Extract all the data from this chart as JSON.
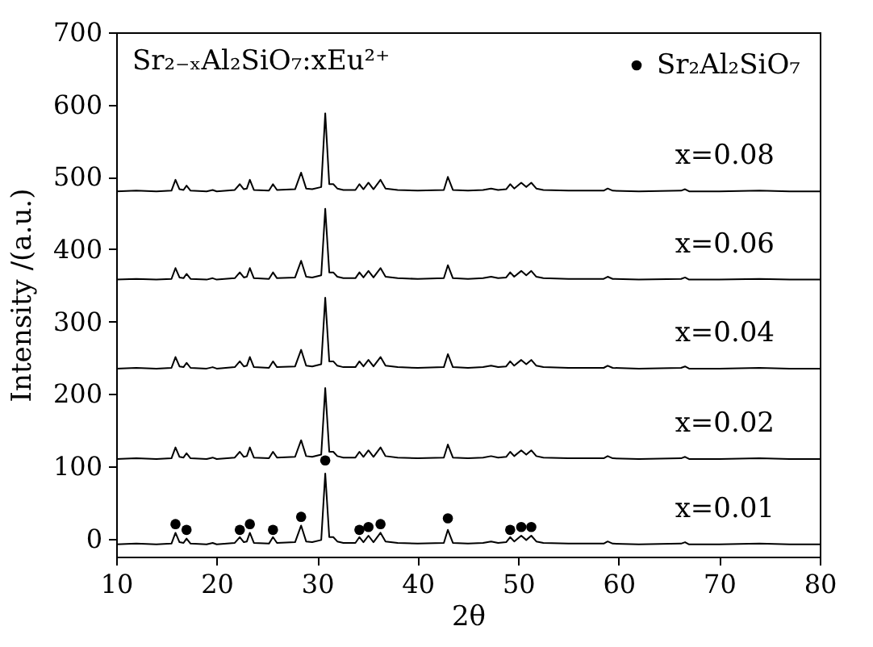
{
  "chart_data": {
    "type": "line",
    "xlabel": "2θ",
    "ylabel": "Intensity /(a.u.)",
    "annotations": [
      "Sr₂₋ₓAl₂SiO₇:xEu²⁺"
    ],
    "x": [
      10,
      12,
      14,
      15.5,
      15.9,
      16.3,
      16.7,
      17.0,
      17.4,
      19,
      19.6,
      20,
      21.8,
      22.3,
      22.7,
      23.0,
      23.3,
      23.7,
      25.2,
      25.6,
      26.0,
      27.8,
      28.4,
      28.9,
      29.5,
      30.4,
      30.8,
      31.2,
      31.6,
      32.0,
      32.6,
      33.8,
      34.2,
      34.6,
      35.1,
      35.6,
      36.3,
      36.8,
      38,
      40,
      42.6,
      43.0,
      43.5,
      45,
      46.5,
      47.3,
      48,
      48.8,
      49.2,
      49.6,
      50.3,
      50.8,
      51.3,
      51.8,
      52.5,
      55,
      58.5,
      58.9,
      59.4,
      62,
      66.2,
      66.6,
      67.0,
      70,
      74,
      77,
      80
    ],
    "series": [
      {
        "name": "x=0.01",
        "color": "#000000",
        "values": [
          -8,
          -7,
          -8,
          -7,
          8,
          -5,
          -6,
          0,
          -7,
          -8,
          -6,
          -8,
          -6,
          2,
          -5,
          -4,
          8,
          -6,
          -7,
          2,
          -6,
          -5,
          18,
          -4,
          -5,
          -2,
          90,
          2,
          2,
          -4,
          -6,
          -6,
          2,
          -5,
          4,
          -5,
          8,
          -4,
          -6,
          -7,
          -6,
          12,
          -6,
          -7,
          -6,
          -4,
          -6,
          -5,
          2,
          -4,
          4,
          -2,
          4,
          -4,
          -6,
          -7,
          -7,
          -4,
          -7,
          -8,
          -7,
          -5,
          -8,
          -8,
          -7,
          -8,
          -8
        ]
      },
      {
        "name": "x=0.02",
        "color": "#000000",
        "values": [
          110,
          111,
          110,
          111,
          126,
          113,
          112,
          118,
          111,
          110,
          112,
          110,
          112,
          120,
          113,
          114,
          126,
          112,
          111,
          120,
          112,
          113,
          136,
          114,
          113,
          116,
          208,
          120,
          120,
          114,
          112,
          112,
          120,
          113,
          122,
          113,
          126,
          114,
          112,
          111,
          112,
          130,
          112,
          111,
          112,
          114,
          112,
          113,
          120,
          114,
          122,
          116,
          122,
          114,
          112,
          111,
          111,
          114,
          111,
          110,
          111,
          113,
          110,
          110,
          111,
          110,
          110
        ]
      },
      {
        "name": "x=0.04",
        "color": "#000000",
        "values": [
          235,
          236,
          235,
          236,
          251,
          238,
          237,
          243,
          236,
          235,
          237,
          235,
          237,
          245,
          238,
          239,
          251,
          237,
          236,
          245,
          237,
          238,
          261,
          239,
          238,
          241,
          333,
          245,
          245,
          239,
          237,
          237,
          245,
          238,
          247,
          238,
          251,
          239,
          237,
          236,
          237,
          255,
          237,
          236,
          237,
          239,
          237,
          238,
          245,
          239,
          247,
          241,
          247,
          239,
          237,
          236,
          236,
          239,
          236,
          235,
          236,
          238,
          235,
          235,
          236,
          235,
          235
        ]
      },
      {
        "name": "x=0.06",
        "color": "#000000",
        "values": [
          358,
          359,
          358,
          359,
          374,
          361,
          360,
          366,
          359,
          358,
          360,
          358,
          360,
          368,
          361,
          362,
          374,
          360,
          359,
          368,
          360,
          361,
          384,
          362,
          361,
          364,
          456,
          368,
          368,
          362,
          360,
          360,
          368,
          361,
          370,
          361,
          374,
          362,
          360,
          359,
          360,
          378,
          360,
          359,
          360,
          362,
          360,
          361,
          368,
          362,
          370,
          364,
          370,
          362,
          360,
          359,
          359,
          362,
          359,
          358,
          359,
          361,
          358,
          358,
          359,
          358,
          358
        ]
      },
      {
        "name": "x=0.08",
        "color": "#000000",
        "values": [
          480,
          481,
          480,
          481,
          496,
          483,
          482,
          488,
          481,
          480,
          482,
          480,
          482,
          490,
          483,
          484,
          496,
          482,
          481,
          490,
          482,
          483,
          506,
          484,
          483,
          486,
          588,
          490,
          490,
          484,
          482,
          482,
          490,
          483,
          492,
          483,
          496,
          484,
          482,
          481,
          482,
          500,
          482,
          481,
          482,
          484,
          482,
          483,
          490,
          484,
          492,
          486,
          492,
          484,
          482,
          481,
          481,
          484,
          481,
          480,
          481,
          483,
          480,
          480,
          481,
          480,
          480
        ]
      },
      {
        "name": "Sr₂Al₂SiO₇",
        "type": "scatter",
        "marker": "circle",
        "color": "#000000",
        "x": [
          15.9,
          17.0,
          22.3,
          23.3,
          25.6,
          28.4,
          30.8,
          34.2,
          35.1,
          36.3,
          43.0,
          49.2,
          50.3,
          51.3
        ],
        "values": [
          20,
          12,
          12,
          20,
          12,
          30,
          108,
          12,
          16,
          20,
          28,
          12,
          16,
          16
        ]
      }
    ],
    "legend": "top right",
    "grid": false,
    "xlim": [
      10,
      80
    ],
    "xticks": [
      10,
      20,
      30,
      40,
      50,
      60,
      70,
      80
    ],
    "ylim": [
      -25,
      700
    ],
    "yticks": [
      0,
      100,
      200,
      300,
      400,
      500,
      600,
      700
    ]
  }
}
